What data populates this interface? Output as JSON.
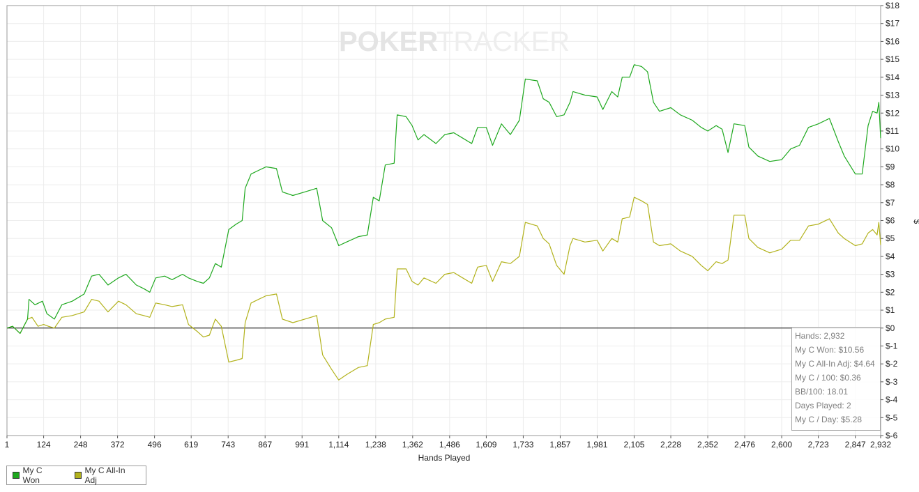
{
  "watermark": {
    "part1": "POKER",
    "part2": "TRACKER"
  },
  "legend": [
    {
      "label": "My C Won",
      "color": "#1ea81e"
    },
    {
      "label": "My C All-In Adj",
      "color": "#b2b21c"
    }
  ],
  "stats": [
    "Hands: 2,932",
    "My C Won: $10.56",
    "My C All-In Adj: $4.64",
    "My C / 100: $0.36",
    "BB/100: 18.01",
    "Days Played: 2",
    "My C / Day: $5.28"
  ],
  "chart_data": {
    "type": "line",
    "title": "",
    "xlabel": "Hands Played",
    "ylabel": "$",
    "xlim": [
      1,
      2932
    ],
    "ylim": [
      -6,
      18
    ],
    "grid": true,
    "legend_position": "bottom-left",
    "x_ticks": [
      1,
      124,
      248,
      372,
      496,
      619,
      743,
      867,
      991,
      1114,
      1238,
      1362,
      1486,
      1609,
      1733,
      1857,
      1981,
      2105,
      2228,
      2352,
      2476,
      2600,
      2723,
      2847,
      2932
    ],
    "x_tick_labels": [
      "1",
      "124",
      "248",
      "372",
      "496",
      "619",
      "743",
      "867",
      "991",
      "1,114",
      "1,238",
      "1,362",
      "1,486",
      "1,609",
      "1,733",
      "1,857",
      "1,981",
      "2,105",
      "2,228",
      "2,352",
      "2,476",
      "2,600",
      "2,723",
      "2,847",
      "2,932"
    ],
    "y_ticks": [
      18,
      17,
      16,
      15,
      14,
      13,
      12,
      11,
      10,
      9,
      8,
      7,
      6,
      5,
      4,
      3,
      2,
      1,
      0,
      -1,
      -2,
      -3,
      -4,
      -5,
      -6
    ],
    "y_tick_labels": [
      "$18",
      "$17",
      "$16",
      "$15",
      "$14",
      "$13",
      "$12",
      "$11",
      "$10",
      "$9",
      "$8",
      "$7",
      "$6",
      "$5",
      "$4",
      "$3",
      "$2",
      "$1",
      "$0",
      "$-1",
      "$-2",
      "$-3",
      "$-4",
      "$-5",
      "$-6"
    ],
    "series": [
      {
        "name": "My C Won",
        "color": "#1ea81e",
        "points": [
          [
            1,
            0
          ],
          [
            20,
            0.1
          ],
          [
            45,
            -0.3
          ],
          [
            70,
            0.5
          ],
          [
            75,
            1.6
          ],
          [
            95,
            1.3
          ],
          [
            120,
            1.5
          ],
          [
            135,
            0.8
          ],
          [
            160,
            0.5
          ],
          [
            185,
            1.3
          ],
          [
            220,
            1.5
          ],
          [
            260,
            1.9
          ],
          [
            285,
            2.9
          ],
          [
            310,
            3.0
          ],
          [
            340,
            2.4
          ],
          [
            375,
            2.8
          ],
          [
            400,
            3.0
          ],
          [
            435,
            2.4
          ],
          [
            460,
            2.2
          ],
          [
            480,
            2.0
          ],
          [
            500,
            2.8
          ],
          [
            530,
            2.9
          ],
          [
            555,
            2.7
          ],
          [
            590,
            3.0
          ],
          [
            610,
            2.8
          ],
          [
            640,
            2.6
          ],
          [
            660,
            2.5
          ],
          [
            680,
            2.8
          ],
          [
            700,
            3.6
          ],
          [
            720,
            3.4
          ],
          [
            745,
            5.5
          ],
          [
            770,
            5.8
          ],
          [
            790,
            6.0
          ],
          [
            800,
            7.8
          ],
          [
            820,
            8.6
          ],
          [
            845,
            8.8
          ],
          [
            870,
            9.0
          ],
          [
            905,
            8.9
          ],
          [
            925,
            7.6
          ],
          [
            960,
            7.4
          ],
          [
            1000,
            7.6
          ],
          [
            1040,
            7.8
          ],
          [
            1060,
            6.0
          ],
          [
            1090,
            5.6
          ],
          [
            1114,
            4.6
          ],
          [
            1140,
            4.8
          ],
          [
            1180,
            5.1
          ],
          [
            1210,
            5.2
          ],
          [
            1230,
            7.3
          ],
          [
            1250,
            7.1
          ],
          [
            1270,
            9.1
          ],
          [
            1300,
            9.2
          ],
          [
            1310,
            11.9
          ],
          [
            1340,
            11.8
          ],
          [
            1360,
            11.3
          ],
          [
            1380,
            10.5
          ],
          [
            1400,
            10.8
          ],
          [
            1440,
            10.3
          ],
          [
            1470,
            10.8
          ],
          [
            1500,
            10.9
          ],
          [
            1530,
            10.6
          ],
          [
            1560,
            10.3
          ],
          [
            1580,
            11.2
          ],
          [
            1609,
            11.2
          ],
          [
            1630,
            10.2
          ],
          [
            1660,
            11.4
          ],
          [
            1690,
            10.8
          ],
          [
            1720,
            11.6
          ],
          [
            1740,
            13.9
          ],
          [
            1780,
            13.8
          ],
          [
            1800,
            12.8
          ],
          [
            1820,
            12.6
          ],
          [
            1845,
            11.8
          ],
          [
            1870,
            11.9
          ],
          [
            1890,
            12.6
          ],
          [
            1900,
            13.2
          ],
          [
            1940,
            13.0
          ],
          [
            1981,
            12.9
          ],
          [
            2000,
            12.2
          ],
          [
            2030,
            13.2
          ],
          [
            2050,
            12.9
          ],
          [
            2065,
            14.0
          ],
          [
            2090,
            14.0
          ],
          [
            2105,
            14.7
          ],
          [
            2130,
            14.6
          ],
          [
            2150,
            14.3
          ],
          [
            2170,
            12.6
          ],
          [
            2190,
            12.1
          ],
          [
            2228,
            12.3
          ],
          [
            2260,
            11.9
          ],
          [
            2300,
            11.6
          ],
          [
            2330,
            11.2
          ],
          [
            2352,
            11.0
          ],
          [
            2380,
            11.3
          ],
          [
            2400,
            11.1
          ],
          [
            2420,
            9.8
          ],
          [
            2440,
            11.4
          ],
          [
            2476,
            11.3
          ],
          [
            2490,
            10.1
          ],
          [
            2520,
            9.6
          ],
          [
            2560,
            9.3
          ],
          [
            2600,
            9.4
          ],
          [
            2630,
            10.0
          ],
          [
            2660,
            10.2
          ],
          [
            2690,
            11.2
          ],
          [
            2723,
            11.4
          ],
          [
            2760,
            11.7
          ],
          [
            2790,
            10.4
          ],
          [
            2810,
            9.6
          ],
          [
            2847,
            8.6
          ],
          [
            2870,
            8.6
          ],
          [
            2890,
            11.3
          ],
          [
            2905,
            12.1
          ],
          [
            2920,
            12.0
          ],
          [
            2926,
            12.6
          ],
          [
            2932,
            10.6
          ]
        ]
      },
      {
        "name": "My C All-In Adj",
        "color": "#b2b21c",
        "points": [
          [
            1,
            0
          ],
          [
            20,
            0.1
          ],
          [
            45,
            -0.3
          ],
          [
            70,
            0.5
          ],
          [
            85,
            0.6
          ],
          [
            105,
            0.1
          ],
          [
            124,
            0.2
          ],
          [
            140,
            0.1
          ],
          [
            160,
            0.0
          ],
          [
            185,
            0.6
          ],
          [
            220,
            0.7
          ],
          [
            260,
            0.9
          ],
          [
            285,
            1.6
          ],
          [
            310,
            1.5
          ],
          [
            340,
            0.9
          ],
          [
            375,
            1.5
          ],
          [
            400,
            1.3
          ],
          [
            435,
            0.8
          ],
          [
            460,
            0.7
          ],
          [
            480,
            0.6
          ],
          [
            500,
            1.4
          ],
          [
            530,
            1.3
          ],
          [
            555,
            1.2
          ],
          [
            590,
            1.3
          ],
          [
            610,
            0.2
          ],
          [
            640,
            -0.2
          ],
          [
            660,
            -0.5
          ],
          [
            680,
            -0.4
          ],
          [
            700,
            0.5
          ],
          [
            720,
            0.1
          ],
          [
            745,
            -1.9
          ],
          [
            770,
            -1.8
          ],
          [
            790,
            -1.7
          ],
          [
            800,
            0.3
          ],
          [
            820,
            1.4
          ],
          [
            845,
            1.6
          ],
          [
            870,
            1.8
          ],
          [
            905,
            1.9
          ],
          [
            925,
            0.5
          ],
          [
            960,
            0.3
          ],
          [
            1000,
            0.5
          ],
          [
            1040,
            0.7
          ],
          [
            1060,
            -1.5
          ],
          [
            1090,
            -2.3
          ],
          [
            1114,
            -2.9
          ],
          [
            1140,
            -2.6
          ],
          [
            1180,
            -2.2
          ],
          [
            1210,
            -2.1
          ],
          [
            1230,
            0.2
          ],
          [
            1250,
            0.3
          ],
          [
            1270,
            0.5
          ],
          [
            1300,
            0.6
          ],
          [
            1310,
            3.3
          ],
          [
            1340,
            3.3
          ],
          [
            1360,
            2.6
          ],
          [
            1380,
            2.4
          ],
          [
            1400,
            2.8
          ],
          [
            1440,
            2.5
          ],
          [
            1470,
            3.0
          ],
          [
            1500,
            3.1
          ],
          [
            1530,
            2.8
          ],
          [
            1560,
            2.5
          ],
          [
            1580,
            3.4
          ],
          [
            1609,
            3.5
          ],
          [
            1630,
            2.6
          ],
          [
            1660,
            3.7
          ],
          [
            1690,
            3.6
          ],
          [
            1720,
            4.0
          ],
          [
            1740,
            5.9
          ],
          [
            1780,
            5.7
          ],
          [
            1800,
            5.0
          ],
          [
            1820,
            4.7
          ],
          [
            1845,
            3.5
          ],
          [
            1870,
            3.0
          ],
          [
            1890,
            4.6
          ],
          [
            1900,
            5.0
          ],
          [
            1940,
            4.8
          ],
          [
            1981,
            4.9
          ],
          [
            2000,
            4.3
          ],
          [
            2030,
            5.0
          ],
          [
            2050,
            4.8
          ],
          [
            2065,
            6.1
          ],
          [
            2090,
            6.2
          ],
          [
            2105,
            7.3
          ],
          [
            2130,
            7.1
          ],
          [
            2150,
            6.9
          ],
          [
            2170,
            4.8
          ],
          [
            2190,
            4.6
          ],
          [
            2228,
            4.7
          ],
          [
            2260,
            4.3
          ],
          [
            2300,
            4.0
          ],
          [
            2330,
            3.5
          ],
          [
            2352,
            3.2
          ],
          [
            2380,
            3.7
          ],
          [
            2400,
            3.6
          ],
          [
            2420,
            3.8
          ],
          [
            2440,
            6.3
          ],
          [
            2476,
            6.3
          ],
          [
            2490,
            5.0
          ],
          [
            2520,
            4.5
          ],
          [
            2560,
            4.2
          ],
          [
            2600,
            4.4
          ],
          [
            2630,
            4.9
          ],
          [
            2660,
            4.9
          ],
          [
            2690,
            5.7
          ],
          [
            2723,
            5.8
          ],
          [
            2760,
            6.1
          ],
          [
            2790,
            5.3
          ],
          [
            2810,
            5.0
          ],
          [
            2847,
            4.6
          ],
          [
            2870,
            4.7
          ],
          [
            2890,
            5.3
          ],
          [
            2905,
            5.5
          ],
          [
            2920,
            5.2
          ],
          [
            2926,
            5.9
          ],
          [
            2932,
            4.64
          ]
        ]
      }
    ]
  }
}
